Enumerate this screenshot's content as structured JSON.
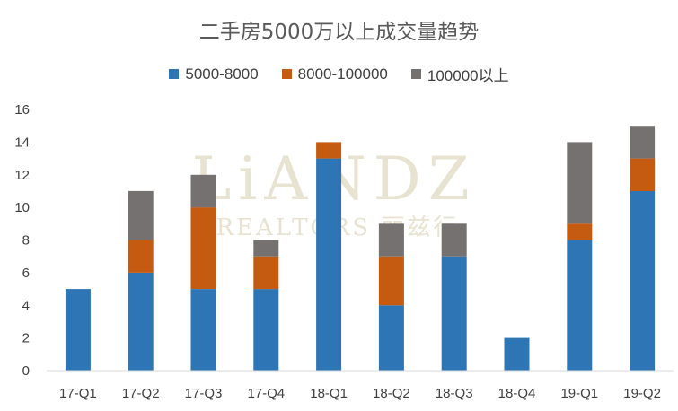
{
  "chart_data": {
    "type": "bar",
    "stacked": true,
    "title": "二手房5000万以上成交量趋势",
    "categories": [
      "17-Q1",
      "17-Q2",
      "17-Q3",
      "17-Q4",
      "18-Q1",
      "18-Q2",
      "18-Q3",
      "18-Q4",
      "19-Q1",
      "19-Q2"
    ],
    "series": [
      {
        "name": "5000-8000",
        "color": "#2e75b6",
        "values": [
          5,
          6,
          5,
          5,
          13,
          4,
          7,
          2,
          8,
          11
        ]
      },
      {
        "name": "8000-100000",
        "color": "#c55a11",
        "values": [
          0,
          2,
          5,
          2,
          1,
          3,
          0,
          0,
          1,
          2
        ]
      },
      {
        "name": "100000以上",
        "color": "#767171",
        "values": [
          0,
          3,
          2,
          1,
          0,
          2,
          2,
          0,
          5,
          2
        ]
      }
    ],
    "yticks": [
      "0",
      "2",
      "4",
      "6",
      "8",
      "10",
      "12",
      "14",
      "16"
    ],
    "ylim": [
      0,
      16
    ],
    "legend_position": "top",
    "grid": false,
    "watermark": {
      "line1": "LiANDZ",
      "line2": "REALTORS 丽兹行"
    }
  }
}
